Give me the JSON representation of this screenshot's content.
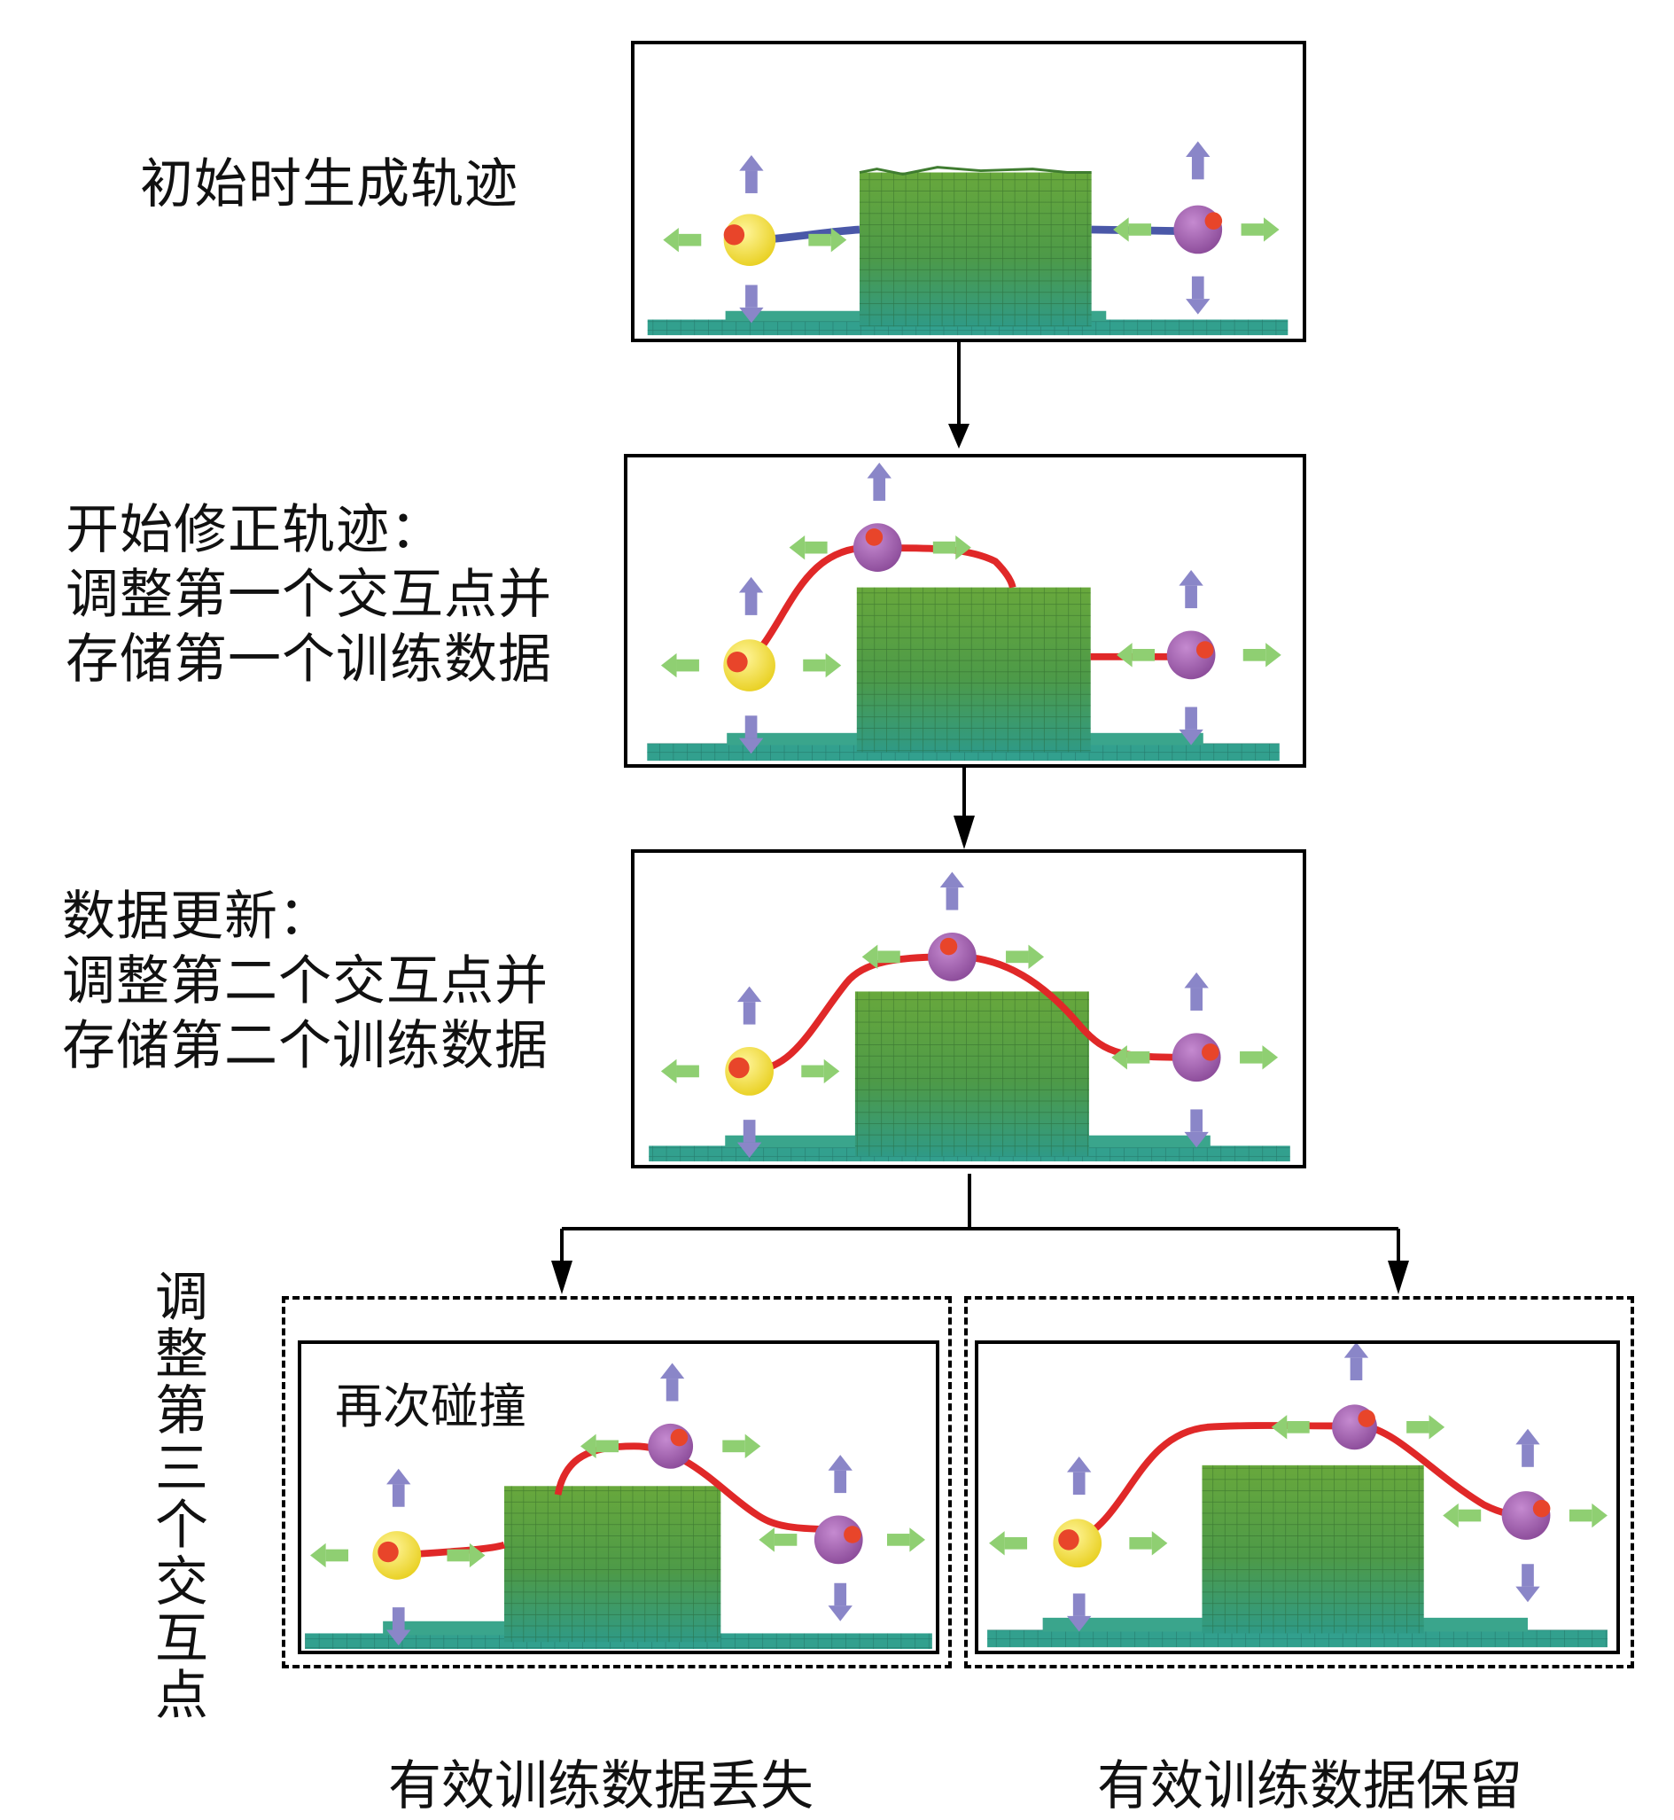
{
  "steps": [
    {
      "lines": [
        "初始时生成轨迹"
      ]
    },
    {
      "lines": [
        "开始修正轨迹：",
        "调整第一个交互点并",
        "存储第一个训练数据"
      ]
    },
    {
      "lines": [
        "数据更新：",
        "调整第二个交互点并",
        "存储第二个训练数据"
      ]
    }
  ],
  "branch_label": "调整第三个交互点",
  "branch_label_chars": [
    "调",
    "整",
    "第",
    "三",
    "个",
    "交",
    "互",
    "点"
  ],
  "collision_label": "再次碰撞",
  "outcomes": [
    "有效训练数据丢失",
    "有效训练数据保留"
  ],
  "colors": {
    "obstacle_top": "#5f9f3e",
    "obstacle_bottom": "#2f9a86",
    "floor": "#32a08e",
    "initial_path": "#4a58a8",
    "corrected_path": "#e02828",
    "start_point": "#f2e23a",
    "interaction_point": "#a45aa8",
    "vertical_arrow": "#8a86c8",
    "horizontal_arrow": "#8fcf72"
  }
}
